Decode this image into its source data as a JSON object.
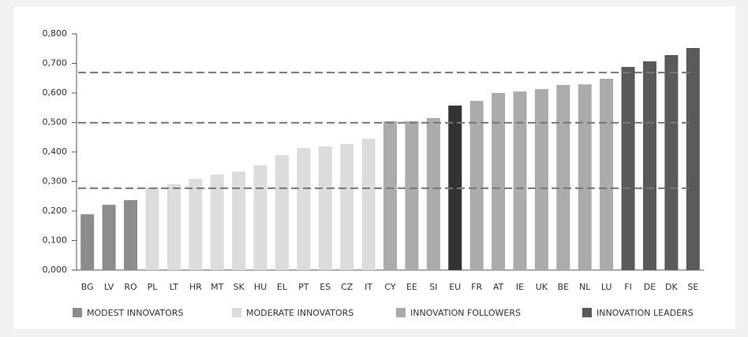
{
  "chart_data": {
    "type": "bar",
    "categories": [
      "BG",
      "LV",
      "RO",
      "PL",
      "LT",
      "HR",
      "MT",
      "SK",
      "HU",
      "EL",
      "PT",
      "ES",
      "CZ",
      "IT",
      "CY",
      "EE",
      "SI",
      "EU",
      "FR",
      "AT",
      "IE",
      "UK",
      "BE",
      "NL",
      "LU",
      "FI",
      "DE",
      "DK",
      "SE"
    ],
    "values": [
      0.189,
      0.221,
      0.237,
      0.28,
      0.291,
      0.309,
      0.323,
      0.333,
      0.355,
      0.389,
      0.413,
      0.419,
      0.427,
      0.445,
      0.504,
      0.504,
      0.515,
      0.557,
      0.573,
      0.6,
      0.605,
      0.613,
      0.627,
      0.629,
      0.648,
      0.688,
      0.707,
      0.728,
      0.752
    ],
    "colors": [
      "#8c8c8c",
      "#8c8c8c",
      "#8c8c8c",
      "#dcdcdc",
      "#dcdcdc",
      "#dcdcdc",
      "#dcdcdc",
      "#dcdcdc",
      "#dcdcdc",
      "#dcdcdc",
      "#dcdcdc",
      "#dcdcdc",
      "#dcdcdc",
      "#dcdcdc",
      "#ababab",
      "#ababab",
      "#ababab",
      "#333333",
      "#ababab",
      "#ababab",
      "#ababab",
      "#ababab",
      "#ababab",
      "#ababab",
      "#ababab",
      "#5a5a5a",
      "#5a5a5a",
      "#5a5a5a",
      "#5a5a5a"
    ],
    "ylim": [
      0,
      0.8
    ],
    "yticks": [
      {
        "value": 0,
        "label": "0,000"
      },
      {
        "value": 0.1,
        "label": "0,100"
      },
      {
        "value": 0.2,
        "label": "0,200"
      },
      {
        "value": 0.3,
        "label": "0,300"
      },
      {
        "value": 0.4,
        "label": "0,400"
      },
      {
        "value": 0.5,
        "label": "0,500"
      },
      {
        "value": 0.6,
        "label": "0,600"
      },
      {
        "value": 0.7,
        "label": "0,700"
      },
      {
        "value": 0.8,
        "label": "0,800"
      }
    ],
    "reference_lines": [
      0.277,
      0.499,
      0.669
    ],
    "legend": [
      {
        "name": "MODEST INNOVATORS",
        "color": "#8c8c8c"
      },
      {
        "name": "MODERATE INNOVATORS",
        "color": "#dcdcdc"
      },
      {
        "name": "INNOVATION FOLLOWERS",
        "color": "#ababab"
      },
      {
        "name": "INNOVATION LEADERS",
        "color": "#5a5a5a"
      }
    ]
  }
}
